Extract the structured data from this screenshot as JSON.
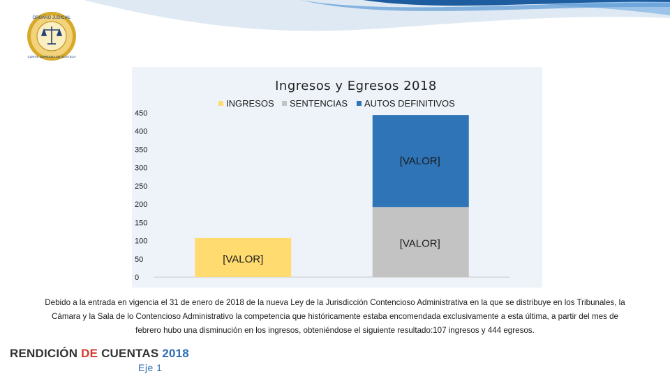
{
  "colors": {
    "ingresos": "#ffdb70",
    "sentencias": "#c3c3c3",
    "autos": "#2e74b6",
    "wave_dark": "#1d5c9e",
    "wave_light": "#9cc4e8"
  },
  "header": {
    "seal_top": "ÓRGANO JUDICIAL",
    "seal_bottom": "CORTE SUPREMA DE JUSTICIA",
    "seal_icon": "scales-of-justice-icon"
  },
  "chart_data": {
    "type": "bar",
    "stacked": true,
    "title": "Ingresos y Egresos 2018",
    "legend_position": "top",
    "categories": [
      "",
      ""
    ],
    "ylim": [
      0,
      450
    ],
    "yticks": [
      0,
      50,
      100,
      150,
      200,
      250,
      300,
      350,
      400,
      450
    ],
    "grid": false,
    "series": [
      {
        "name": "INGRESOS",
        "values": [
          107,
          0
        ],
        "data_labels": [
          "[VALOR]",
          ""
        ]
      },
      {
        "name": "SENTENCIAS",
        "values": [
          0,
          192
        ],
        "data_labels": [
          "",
          "[VALOR]"
        ]
      },
      {
        "name": "AUTOS DEFINITIVOS",
        "values": [
          0,
          252
        ],
        "data_labels": [
          "",
          "[VALOR]"
        ]
      }
    ]
  },
  "body_text": "Debido a la entrada en vigencia el 31 de enero de 2018 de la nueva Ley de la Jurisdicción Contencioso Administrativa en la que se distribuye en los Tribunales, la Cámara y la Sala de lo Contencioso Administrativo la competencia que históricamente estaba encomendada exclusivamente a esta última, a partir del mes de febrero hubo una disminución en los ingresos, obteniéndose el siguiente resultado:107 ingresos y 444 egresos.",
  "footer": {
    "w1": "RENDICIÓN ",
    "w2": "DE ",
    "w3": "CUENTAS ",
    "w4": "2018",
    "eje": "Eje 1"
  }
}
